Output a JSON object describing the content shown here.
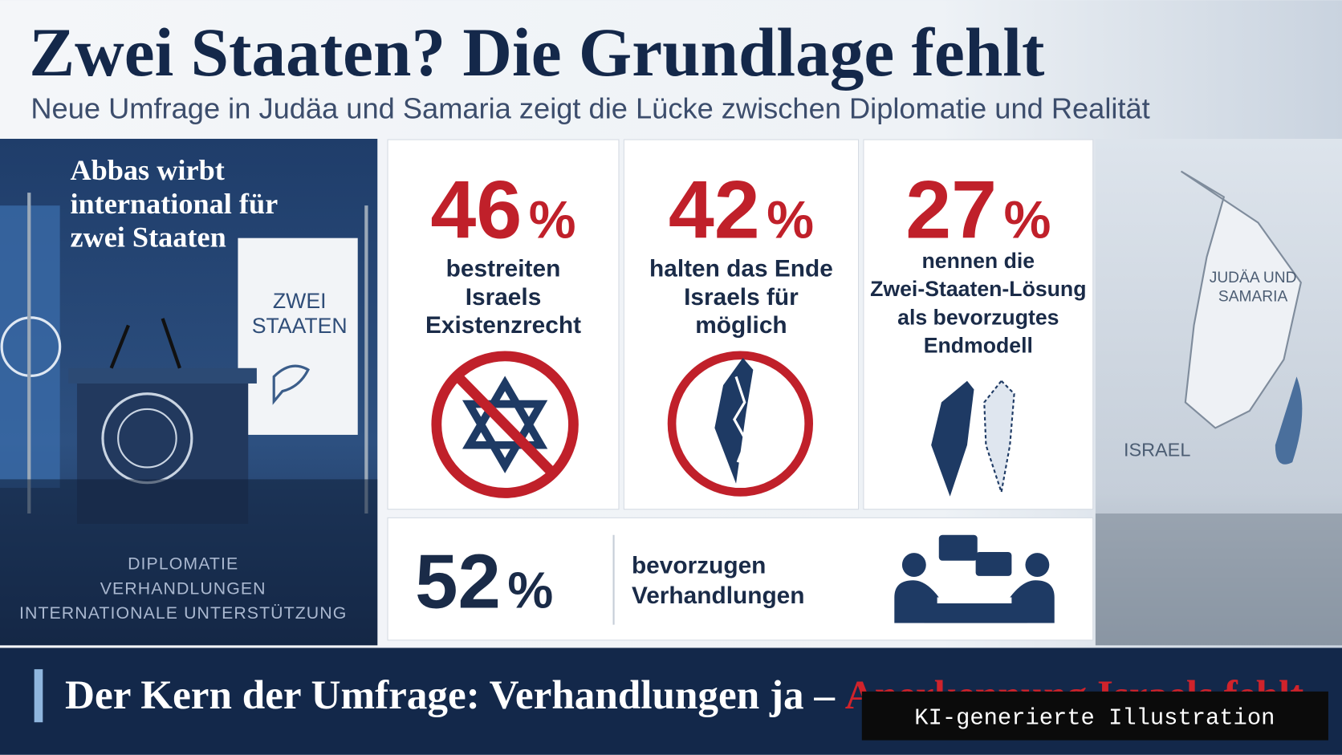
{
  "header": {
    "title": "Zwei Staaten? Die Grundlage fehlt",
    "subtitle": "Neue Umfrage in Judäa und Samaria zeigt die Lücke zwischen Diplomatie und Realität"
  },
  "left_panel": {
    "heading": [
      "Abbas wirbt",
      "international für",
      "zwei Staaten"
    ],
    "banner": [
      "ZWEI",
      "STAATEN"
    ],
    "tags": [
      "DIPLOMATIE",
      "VERHANDLUNGEN",
      "INTERNATIONALE UNTERSTÜTZUNG"
    ]
  },
  "stats": [
    {
      "number": "46",
      "unit": "%",
      "text": [
        "bestreiten",
        "Israels",
        "Existenzrecht"
      ]
    },
    {
      "number": "42",
      "unit": "%",
      "text": [
        "halten das Ende",
        "Israels für",
        "möglich"
      ]
    },
    {
      "number": "27",
      "unit": "%",
      "text": [
        "nennen die",
        "Zwei-Staaten-Lösung",
        "als bevorzugtes",
        "Endmodell"
      ]
    },
    {
      "number": "52",
      "unit": "%",
      "text": [
        "bevorzugen",
        "Verhandlungen"
      ]
    }
  ],
  "map": {
    "labels": [
      "JUDÄA UND",
      "SAMARIA",
      "ISRAEL"
    ]
  },
  "footer": {
    "text": "Der Kern der Umfrage: Verhandlungen ja – ",
    "highlight": "Anerkennung Israels fehlt."
  },
  "watermark": "KI-generierte Illustration"
}
